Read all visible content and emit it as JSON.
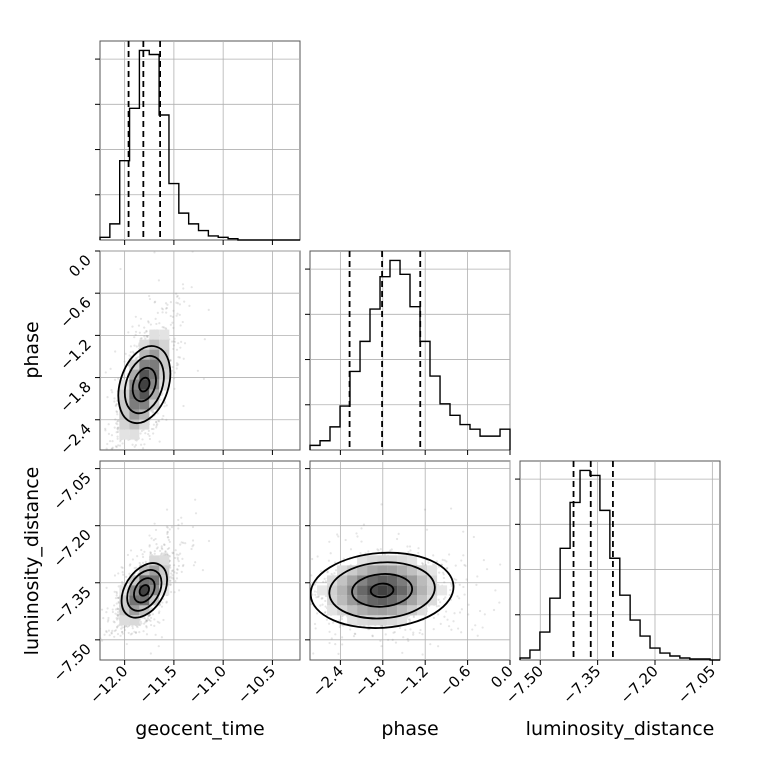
{
  "chart_data": {
    "type": "corner",
    "parameters": [
      "geocent_time",
      "phase",
      "luminosity_distance"
    ],
    "axis_labels": {
      "geocent_time": "geocent_time",
      "phase": "phase",
      "luminosity_distance": "luminosity_distance"
    },
    "ranges": {
      "geocent_time": [
        -12.25,
        -10.22
      ],
      "phase": [
        -2.83,
        0.0
      ],
      "luminosity_distance": [
        -7.553,
        -7.03
      ]
    },
    "ticks": {
      "geocent_time": {
        "values": [
          -12.0,
          -11.5,
          -11.0,
          -10.5
        ],
        "labels": [
          "−12.0",
          "−11.5",
          "−11.0",
          "−10.5"
        ]
      },
      "phase": {
        "values": [
          -2.4,
          -1.8,
          -1.2,
          -0.6,
          0.0
        ],
        "labels": [
          "−2.4",
          "−1.8",
          "−1.2",
          "−0.6",
          "0.0"
        ]
      },
      "luminosity_distance": {
        "values": [
          -7.5,
          -7.35,
          -7.2,
          -7.05
        ],
        "labels": [
          "−7.50",
          "−7.35",
          "−7.20",
          "−7.05"
        ]
      }
    },
    "quantiles": {
      "geocent_time": [
        -11.96,
        -11.81,
        -11.64
      ],
      "phase": [
        -2.27,
        -1.81,
        -1.27
      ],
      "luminosity_distance": [
        -7.413,
        -7.368,
        -7.31
      ]
    },
    "histograms": {
      "geocent_time": {
        "bin_edges": [
          -12.25,
          -12.15,
          -12.05,
          -11.95,
          -11.85,
          -11.75,
          -11.65,
          -11.55,
          -11.45,
          -11.35,
          -11.25,
          -11.15,
          -11.05,
          -10.95,
          -10.85
        ],
        "counts": [
          2,
          12,
          59,
          98,
          141,
          138,
          93,
          42,
          20,
          12,
          7,
          3,
          2,
          1
        ]
      },
      "phase": {
        "bin_edges": [
          -2.83,
          -2.688,
          -2.547,
          -2.405,
          -2.264,
          -2.122,
          -1.981,
          -1.839,
          -1.698,
          -1.556,
          -1.415,
          -1.273,
          -1.132,
          -0.99,
          -0.849,
          -0.707,
          -0.566,
          -0.424,
          -0.283,
          -0.141,
          0.0
        ],
        "counts": [
          4,
          8,
          20,
          38,
          68,
          94,
          122,
          150,
          164,
          152,
          124,
          94,
          64,
          40,
          30,
          22,
          18,
          12,
          12,
          18
        ]
      },
      "luminosity_distance": {
        "bin_edges": [
          -7.553,
          -7.527,
          -7.501,
          -7.475,
          -7.448,
          -7.422,
          -7.396,
          -7.37,
          -7.344,
          -7.318,
          -7.292,
          -7.265,
          -7.239,
          -7.213,
          -7.187,
          -7.161,
          -7.135,
          -7.109,
          -7.082,
          -7.056,
          -7.03
        ],
        "counts": [
          2,
          10,
          28,
          62,
          112,
          158,
          190,
          185,
          150,
          102,
          65,
          40,
          24,
          12,
          7,
          4,
          2,
          1,
          1,
          0
        ]
      }
    },
    "joint_peaks": {
      "geocent_time|phase": [
        -11.8,
        -1.9
      ],
      "geocent_time|luminosity_distance": [
        -11.8,
        -7.37
      ],
      "phase|luminosity_distance": [
        -1.81,
        -7.37
      ]
    },
    "grid": true
  }
}
